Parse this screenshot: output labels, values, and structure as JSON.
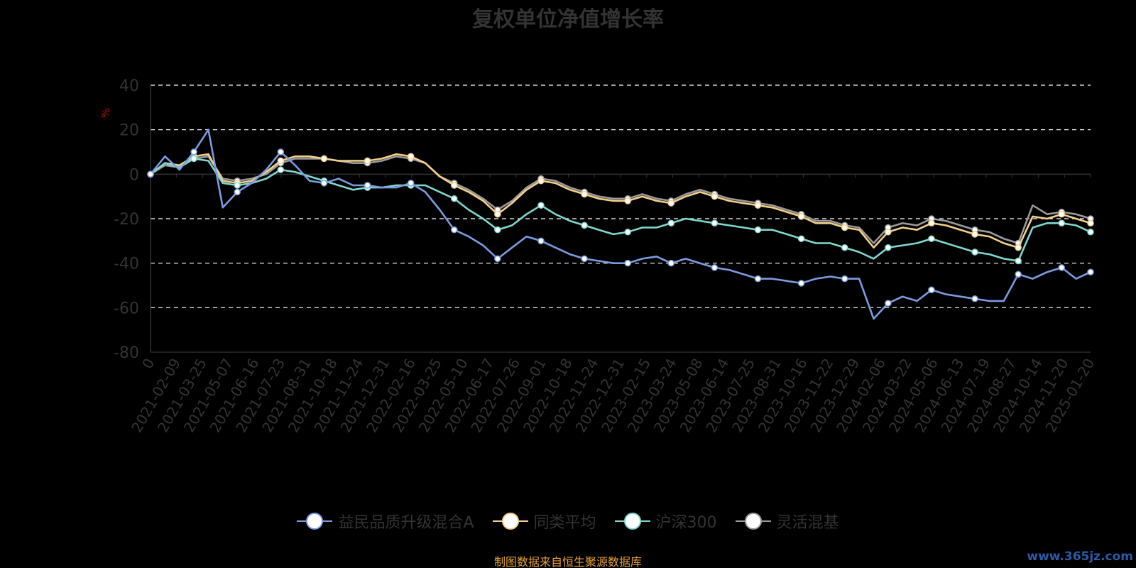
{
  "colors": {
    "background": "#000000",
    "grid": "#ffffff",
    "axis_text": "#333333",
    "source_text": "#e5a23c",
    "ylabel": "#c00000",
    "watermark": "#2a5aa8"
  },
  "footer": {
    "source": "制图数据来自恒生聚源数据库",
    "watermark": "www.365jz.com"
  },
  "chart_data": {
    "type": "line",
    "title": "复权单位净值增长率",
    "xlabel": "",
    "ylabel": "%",
    "ylim": [
      -80,
      40
    ],
    "yticks": [
      -80,
      -60,
      -40,
      -20,
      0,
      20,
      40
    ],
    "grid": true,
    "legend_position": "bottom-center",
    "x_tick_labels": [
      "0",
      "2021-02-09",
      "2021-03-25",
      "2021-05-07",
      "2021-06-16",
      "2021-07-23",
      "2021-08-31",
      "2021-10-18",
      "2021-11-24",
      "2021-12-31",
      "2022-02-16",
      "2022-03-25",
      "2022-05-10",
      "2022-06-17",
      "2022-07-26",
      "2022-09-01",
      "2022-10-18",
      "2022-11-24",
      "2022-12-31",
      "2023-02-15",
      "2023-03-24",
      "2023-05-08",
      "2023-06-14",
      "2023-07-25",
      "2023-08-31",
      "2023-10-16",
      "2023-11-22",
      "2023-12-29",
      "2024-02-06",
      "2024-03-22",
      "2024-05-06",
      "2024-06-13",
      "2024-07-19",
      "2024-08-27",
      "2024-10-14",
      "2024-11-20",
      "2025-01-20"
    ],
    "series": [
      {
        "name": "益民品质升级混合A",
        "color": "#7b9ce0",
        "values": [
          0,
          8,
          2,
          10,
          20,
          -15,
          -8,
          -4,
          2,
          10,
          4,
          -3,
          -4,
          -2,
          -5,
          -5,
          -6,
          -6,
          -4,
          -8,
          -16,
          -25,
          -28,
          -32,
          -38,
          -33,
          -28,
          -30,
          -33,
          -36,
          -38,
          -39,
          -40,
          -40,
          -38,
          -37,
          -40,
          -38,
          -40,
          -42,
          -43,
          -45,
          -47,
          -47,
          -48,
          -49,
          -47,
          -46,
          -47,
          -47,
          -65,
          -58,
          -55,
          -57,
          -52,
          -54,
          -55,
          -56,
          -57,
          -57,
          -45,
          -47,
          -44,
          -42,
          -47,
          -44
        ]
      },
      {
        "name": "同类平均",
        "color": "#f5d08a",
        "values": [
          0,
          5,
          4,
          8,
          9,
          -3,
          -4,
          -3,
          1,
          6,
          8,
          8,
          7,
          6,
          6,
          6,
          7,
          9,
          8,
          5,
          -1,
          -5,
          -8,
          -12,
          -18,
          -13,
          -7,
          -3,
          -4,
          -7,
          -9,
          -11,
          -12,
          -12,
          -10,
          -12,
          -13,
          -10,
          -8,
          -10,
          -12,
          -13,
          -14,
          -15,
          -17,
          -19,
          -22,
          -22,
          -24,
          -25,
          -33,
          -26,
          -24,
          -25,
          -22,
          -23,
          -25,
          -27,
          -28,
          -31,
          -33,
          -19,
          -20,
          -18,
          -20,
          -22
        ]
      },
      {
        "name": "沪深300",
        "color": "#7fd8d0",
        "values": [
          0,
          5,
          3,
          7,
          6,
          -4,
          -5,
          -4,
          -2,
          2,
          1,
          -1,
          -3,
          -5,
          -7,
          -6,
          -6,
          -5,
          -5,
          -5,
          -8,
          -11,
          -16,
          -20,
          -25,
          -23,
          -18,
          -14,
          -18,
          -21,
          -23,
          -25,
          -27,
          -26,
          -24,
          -24,
          -22,
          -20,
          -21,
          -22,
          -23,
          -24,
          -25,
          -25,
          -27,
          -29,
          -31,
          -31,
          -33,
          -35,
          -38,
          -33,
          -32,
          -31,
          -29,
          -31,
          -33,
          -35,
          -36,
          -38,
          -39,
          -24,
          -22,
          -22,
          -23,
          -26
        ]
      },
      {
        "name": "灵活混基",
        "color": "#9a9a9a",
        "values": [
          0,
          4,
          3,
          7,
          8,
          -2,
          -3,
          -2,
          0,
          5,
          7,
          7,
          7,
          6,
          5,
          5,
          6,
          8,
          7,
          5,
          -1,
          -4,
          -7,
          -11,
          -16,
          -12,
          -6,
          -2,
          -3,
          -6,
          -8,
          -10,
          -11,
          -11,
          -9,
          -11,
          -12,
          -9,
          -7,
          -9,
          -11,
          -12,
          -13,
          -14,
          -16,
          -18,
          -21,
          -21,
          -23,
          -24,
          -31,
          -24,
          -22,
          -23,
          -20,
          -21,
          -23,
          -25,
          -26,
          -29,
          -31,
          -14,
          -18,
          -17,
          -18,
          -20
        ]
      }
    ]
  }
}
